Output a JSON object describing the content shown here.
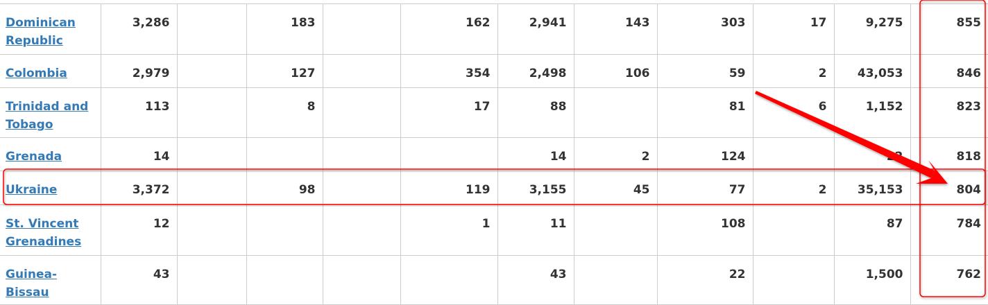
{
  "rows": [
    {
      "country": "Dominican Republic",
      "cells": [
        "3,286",
        "",
        "183",
        "",
        "162",
        "2,941",
        "143",
        "303",
        "17",
        "9,275",
        "855"
      ]
    },
    {
      "country": "Colombia",
      "cells": [
        "2,979",
        "",
        "127",
        "",
        "354",
        "2,498",
        "106",
        "59",
        "2",
        "43,053",
        "846"
      ]
    },
    {
      "country": "Trinidad and Tobago",
      "cells": [
        "113",
        "",
        "8",
        "",
        "17",
        "88",
        "",
        "81",
        "6",
        "1,152",
        "823"
      ]
    },
    {
      "country": "Grenada",
      "cells": [
        "14",
        "",
        "",
        "",
        "",
        "14",
        "2",
        "124",
        "",
        "22",
        "818"
      ]
    },
    {
      "country": "Ukraine",
      "cells": [
        "3,372",
        "",
        "98",
        "",
        "119",
        "3,155",
        "45",
        "77",
        "2",
        "35,153",
        "804"
      ]
    },
    {
      "country": "St. Vincent Grenadines",
      "cells": [
        "12",
        "",
        "",
        "",
        "1",
        "11",
        "",
        "108",
        "",
        "87",
        "784"
      ]
    },
    {
      "country": "Guinea-Bissau",
      "cells": [
        "43",
        "",
        "",
        "",
        "",
        "43",
        "",
        "22",
        "",
        "1,500",
        "762"
      ]
    }
  ],
  "annotation_color": "#ff0000",
  "highlighted_row": "Ukraine"
}
